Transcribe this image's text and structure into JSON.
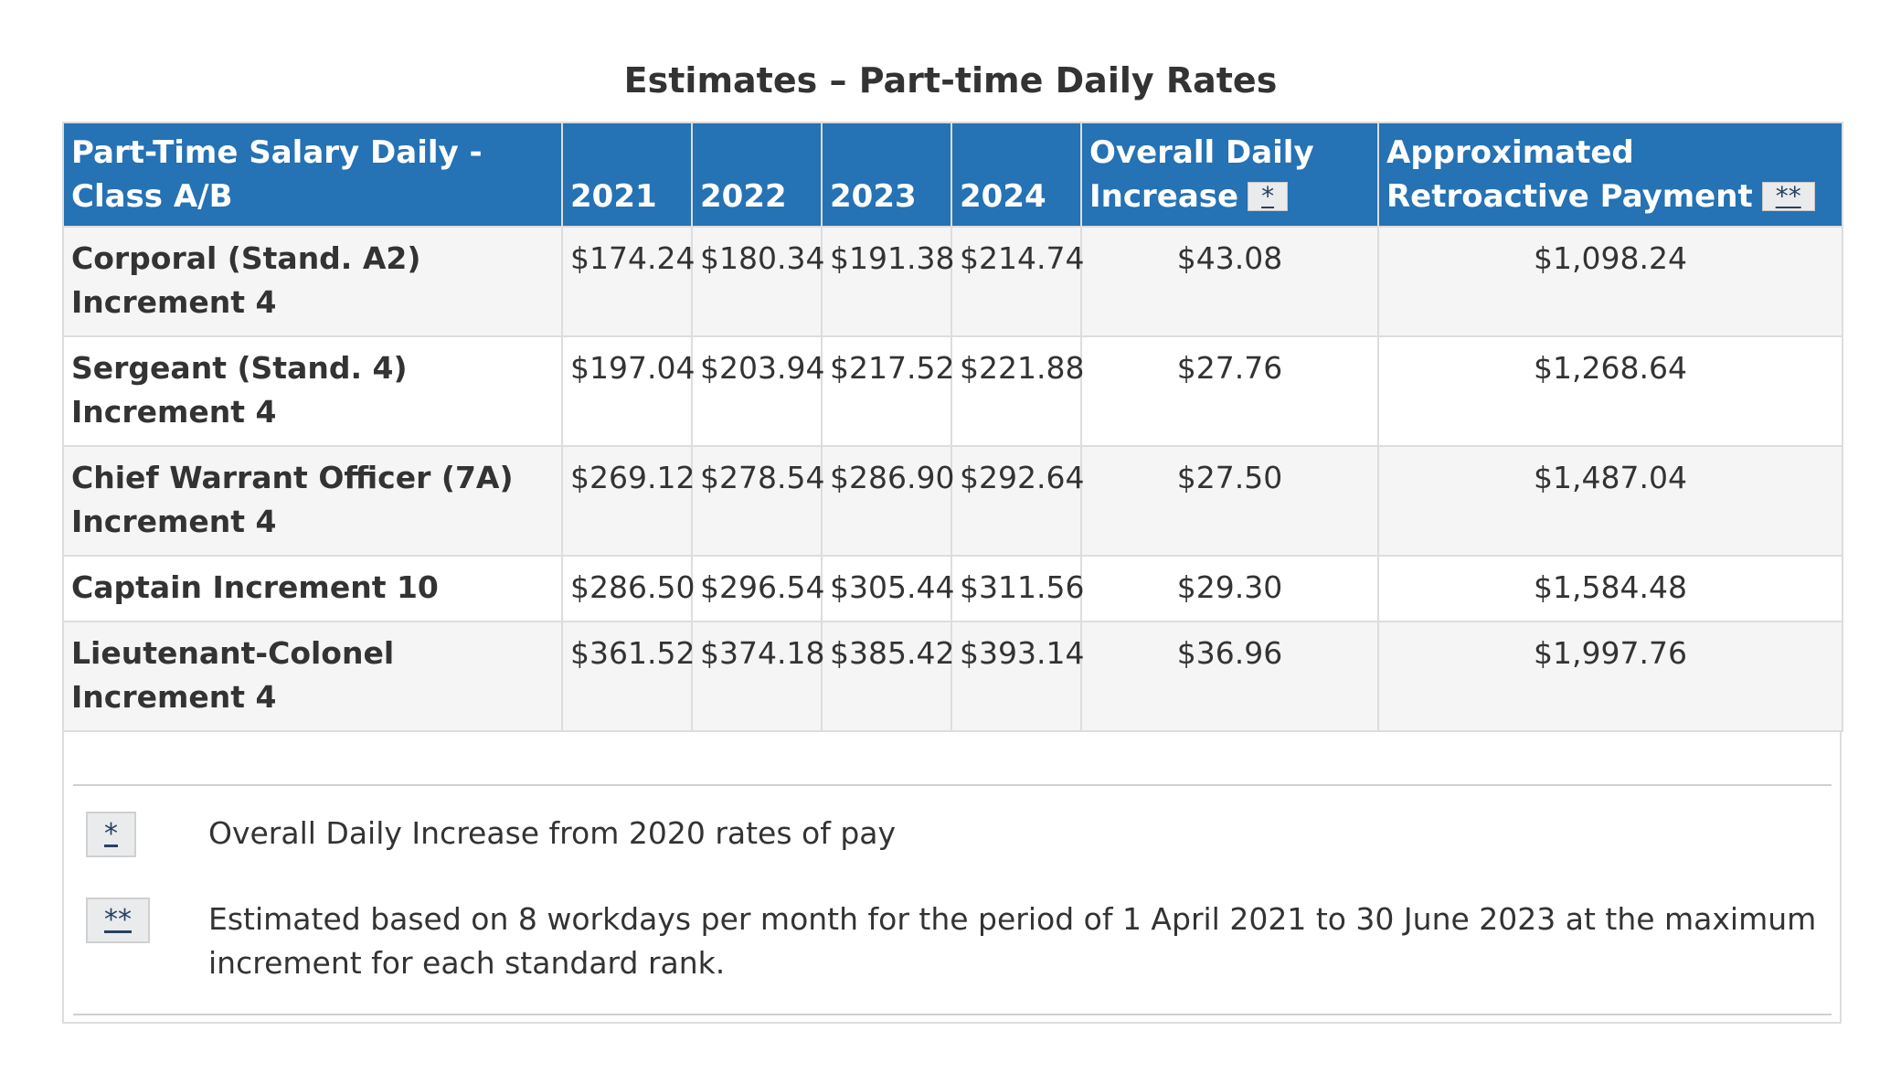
{
  "caption": "Estimates – Part-time Daily Rates",
  "headers": {
    "col_rank": "Part-Time Salary Daily - Class A/B",
    "col_2021": "2021",
    "col_2022": "2022",
    "col_2023": "2023",
    "col_2024": "2024",
    "col_increase": "Overall Daily Increase",
    "col_increase_fn": "*",
    "col_retro": "Approximated Retroactive Payment",
    "col_retro_fn": "**"
  },
  "rows": [
    {
      "rank": "Corporal (Stand. A2) Increment 4",
      "y2021": "$174.24",
      "y2022": "$180.34",
      "y2023": "$191.38",
      "y2024": "$214.74",
      "increase": "$43.08",
      "retro": "$1,098.24"
    },
    {
      "rank": "Sergeant (Stand. 4) Increment 4",
      "y2021": "$197.04",
      "y2022": "$203.94",
      "y2023": "$217.52",
      "y2024": "$221.88",
      "increase": "$27.76",
      "retro": "$1,268.64"
    },
    {
      "rank": "Chief Warrant Officer (7A) Increment 4",
      "y2021": "$269.12",
      "y2022": "$278.54",
      "y2023": "$286.90",
      "y2024": "$292.64",
      "increase": "$27.50",
      "retro": "$1,487.04"
    },
    {
      "rank": "Captain Increment 10",
      "y2021": "$286.50",
      "y2022": "$296.54",
      "y2023": "$305.44",
      "y2024": "$311.56",
      "increase": "$29.30",
      "retro": "$1,584.48"
    },
    {
      "rank": "Lieutenant-Colonel Increment 4",
      "y2021": "$361.52",
      "y2022": "$374.18",
      "y2023": "$385.42",
      "y2024": "$393.14",
      "increase": "$36.96",
      "retro": "$1,997.76"
    }
  ],
  "footnotes": [
    {
      "mark": "*",
      "text": "Overall Daily Increase from 2020 rates of pay"
    },
    {
      "mark": "**",
      "text": "Estimated based on 8 workdays per month for the period of 1 April 2021 to 30 June 2023 at the maximum increment for each standard rank."
    }
  ]
}
